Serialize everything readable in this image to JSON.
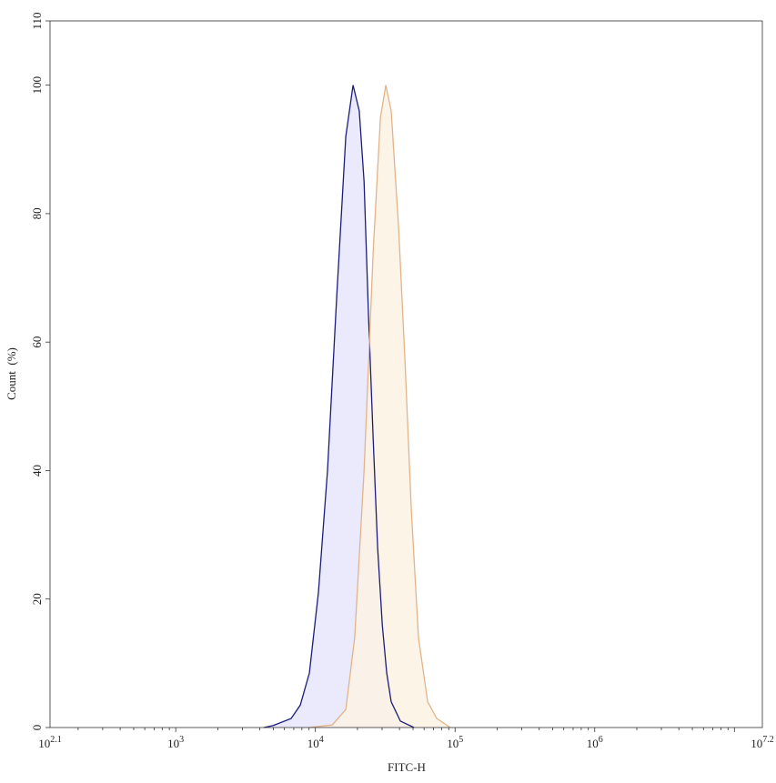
{
  "chart_data": {
    "type": "area",
    "title": "",
    "xlabel": "FITC-H",
    "ylabel": "Count  (%)",
    "x_scale": "log",
    "xlim_exponents": [
      2.1,
      7.2
    ],
    "ylim": [
      0,
      110
    ],
    "x_tick_labels": [
      {
        "base": "10",
        "exp": "2.1",
        "value_exp": 2.1
      },
      {
        "base": "10",
        "exp": "3",
        "value_exp": 3
      },
      {
        "base": "10",
        "exp": "4",
        "value_exp": 4
      },
      {
        "base": "10",
        "exp": "5",
        "value_exp": 5
      },
      {
        "base": "10",
        "exp": "6",
        "value_exp": 6
      },
      {
        "base": "10",
        "exp": "7.2",
        "value_exp": 7.2
      }
    ],
    "y_ticks": [
      0,
      20,
      40,
      60,
      80,
      100,
      110
    ],
    "grid": false,
    "legend": "none",
    "series": [
      {
        "color": "#1c1c7a",
        "fill": "#e6e6fb",
        "x": [
          4280,
          4970,
          6700,
          7790,
          9060,
          10500,
          12200,
          14200,
          16500,
          18600,
          20600,
          22300,
          24000,
          25900,
          27900,
          30100,
          32400,
          34900,
          40600,
          50800
        ],
        "y": [
          0,
          0.3,
          1.4,
          3.5,
          8.5,
          21,
          40,
          67,
          92,
          100,
          96,
          85,
          64,
          45,
          28,
          16,
          8.5,
          4,
          1,
          0
        ]
      },
      {
        "color": "#e2b48a",
        "fill": "#fdf2e4",
        "x": [
          9060,
          13200,
          16500,
          19100,
          22300,
          25900,
          29200,
          31900,
          34900,
          39400,
          43800,
          48600,
          54700,
          63600,
          73900,
          92500
        ],
        "y": [
          0,
          0.4,
          2.8,
          14,
          40,
          74,
          95,
          100,
          96,
          78,
          57,
          34,
          14,
          4,
          1.4,
          0
        ]
      }
    ]
  }
}
